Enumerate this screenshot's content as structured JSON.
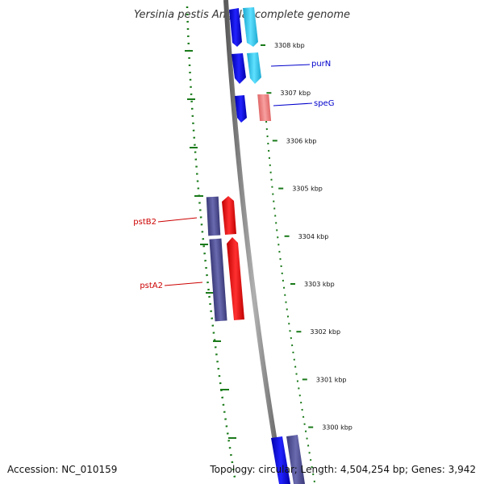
{
  "title": "Yersinia pestis Angola, complete genome",
  "footer": {
    "accession": "Accession: NC_010159",
    "summary": "Topology: circular; Length: 4,504,254 bp; Genes: 3,942"
  },
  "scale_ticks": [
    {
      "kbp": 3308,
      "label": "3308 kbp"
    },
    {
      "kbp": 3307,
      "label": "3307 kbp"
    },
    {
      "kbp": 3306,
      "label": "3306 kbp"
    },
    {
      "kbp": 3305,
      "label": "3305 kbp"
    },
    {
      "kbp": 3304,
      "label": "3304 kbp"
    },
    {
      "kbp": 3303,
      "label": "3303 kbp"
    },
    {
      "kbp": 3302,
      "label": "3302 kbp"
    },
    {
      "kbp": 3301,
      "label": "3301 kbp"
    },
    {
      "kbp": 3300,
      "label": "3300 kbp"
    }
  ],
  "gene_labels": [
    {
      "name": "purN",
      "color": "#0000cc"
    },
    {
      "name": "speG",
      "color": "#0000cc"
    },
    {
      "name": "pstB2",
      "color": "#cc0000"
    },
    {
      "name": "pstA2",
      "color": "#cc0000"
    }
  ],
  "colors": {
    "backbone": "#8c8c8c",
    "gc_skew": "#1a7a1a",
    "cds_blue": "#0000ee",
    "cds_cyan": "#22c8ee",
    "cds_navy": "#4f4f96",
    "cds_red": "#ee1111",
    "cds_salmon": "#f08080"
  }
}
